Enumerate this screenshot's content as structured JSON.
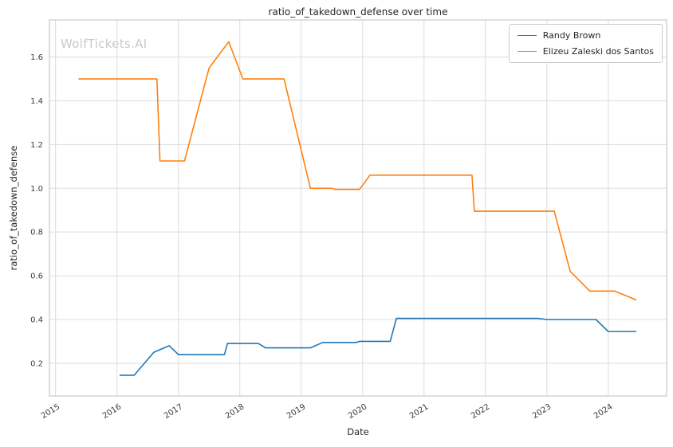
{
  "watermark": "WolfTickets.AI",
  "chart_data": {
    "type": "line",
    "title": "ratio_of_takedown_defense over time",
    "xlabel": "Date",
    "ylabel": "ratio_of_takedown_defense",
    "xlim": [
      2014.9,
      2024.95
    ],
    "ylim": [
      0.05,
      1.77
    ],
    "xticks": [
      2015,
      2016,
      2017,
      2018,
      2019,
      2020,
      2021,
      2022,
      2023,
      2024
    ],
    "yticks": [
      0.2,
      0.4,
      0.6,
      0.8,
      1.0,
      1.2,
      1.4,
      1.6
    ],
    "grid": true,
    "legend_position": "upper right",
    "series": [
      {
        "name": "Randy Brown",
        "color": "#1f77b4",
        "points": [
          [
            2016.05,
            0.145
          ],
          [
            2016.28,
            0.145
          ],
          [
            2016.6,
            0.25
          ],
          [
            2016.85,
            0.28
          ],
          [
            2017.0,
            0.24
          ],
          [
            2017.75,
            0.24
          ],
          [
            2017.8,
            0.29
          ],
          [
            2018.3,
            0.29
          ],
          [
            2018.42,
            0.27
          ],
          [
            2019.15,
            0.27
          ],
          [
            2019.35,
            0.295
          ],
          [
            2019.9,
            0.295
          ],
          [
            2019.95,
            0.3
          ],
          [
            2020.45,
            0.3
          ],
          [
            2020.55,
            0.405
          ],
          [
            2022.85,
            0.405
          ],
          [
            2023.0,
            0.4
          ],
          [
            2023.8,
            0.4
          ],
          [
            2024.0,
            0.345
          ],
          [
            2024.45,
            0.345
          ]
        ]
      },
      {
        "name": "Elizeu Zaleski dos Santos",
        "color": "#ff7f0e",
        "points": [
          [
            2015.38,
            1.5
          ],
          [
            2016.65,
            1.5
          ],
          [
            2016.7,
            1.125
          ],
          [
            2017.1,
            1.125
          ],
          [
            2017.5,
            1.55
          ],
          [
            2017.82,
            1.67
          ],
          [
            2018.05,
            1.5
          ],
          [
            2018.72,
            1.5
          ],
          [
            2019.15,
            1.0
          ],
          [
            2019.5,
            1.0
          ],
          [
            2019.55,
            0.995
          ],
          [
            2019.95,
            0.995
          ],
          [
            2020.12,
            1.06
          ],
          [
            2021.78,
            1.06
          ],
          [
            2021.82,
            0.895
          ],
          [
            2023.12,
            0.895
          ],
          [
            2023.38,
            0.62
          ],
          [
            2023.7,
            0.53
          ],
          [
            2024.1,
            0.53
          ],
          [
            2024.15,
            0.525
          ],
          [
            2024.45,
            0.49
          ]
        ]
      }
    ]
  }
}
